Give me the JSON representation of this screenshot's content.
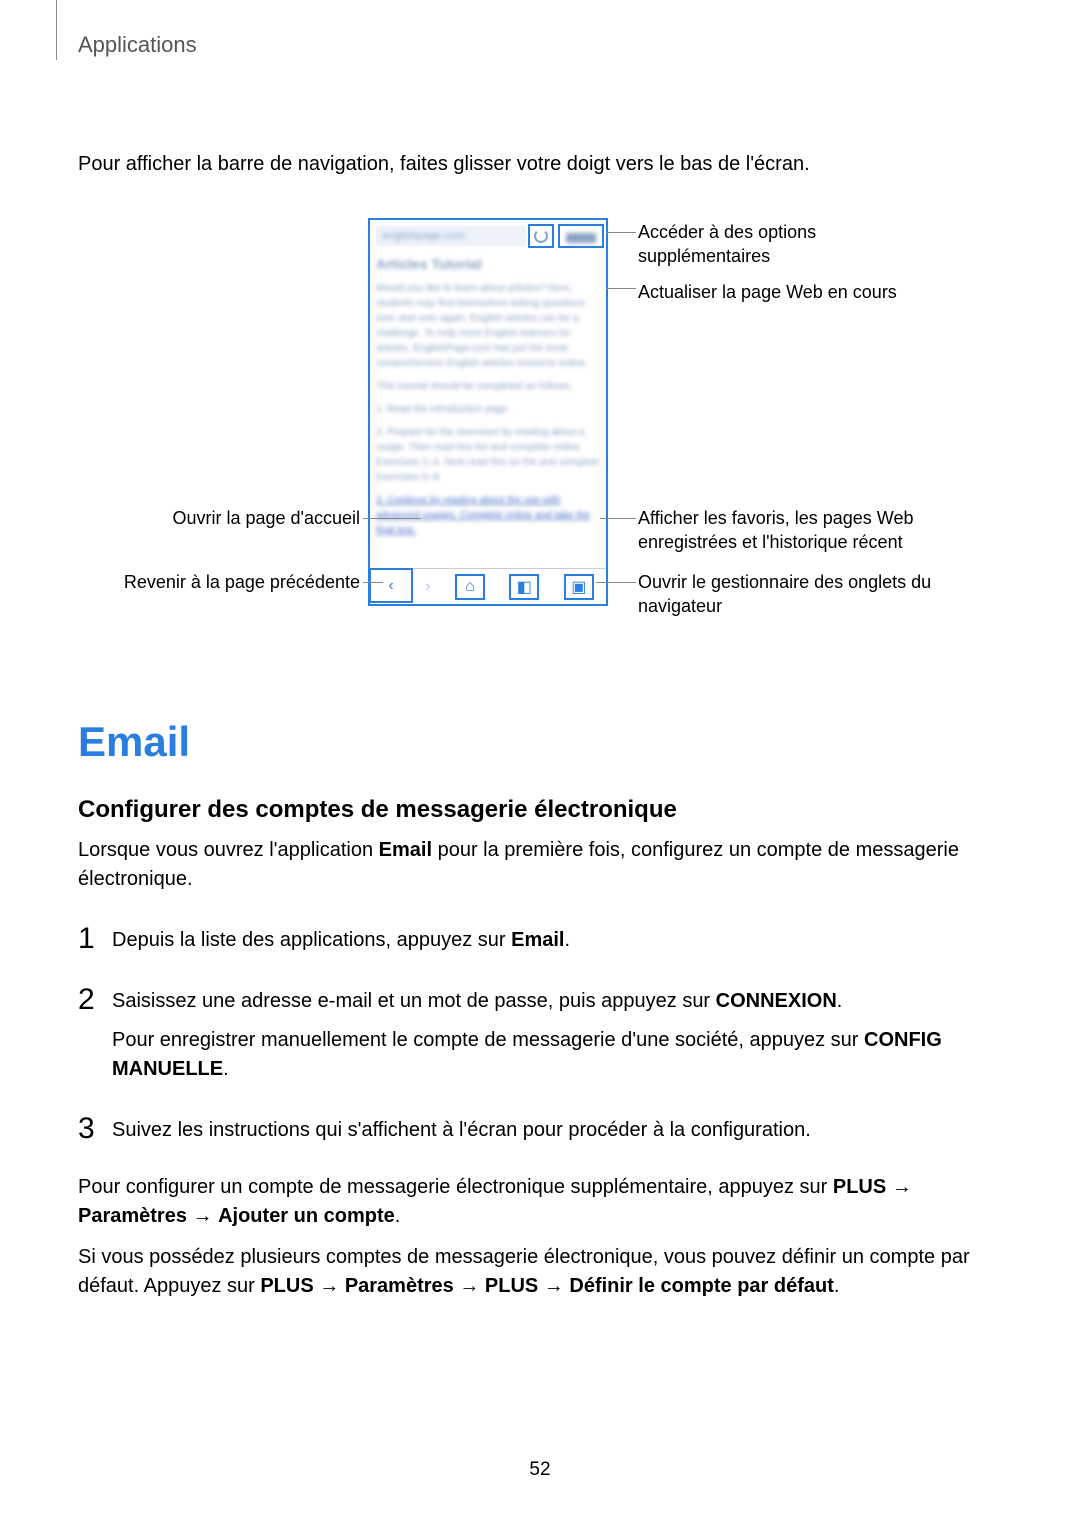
{
  "header": {
    "section": "Applications"
  },
  "intro": "Pour afficher la barre de navigation, faites glisser votre doigt vers le bas de l'écran.",
  "callouts": {
    "right1": "Accéder à des options supplémentaires",
    "right2": "Actualiser la page Web en cours",
    "right3": "Afficher les favoris, les pages Web enregistrées et l'historique récent",
    "right4": "Ouvrir le gestionnaire des onglets du navigateur",
    "left1": "Ouvrir la page d'accueil",
    "left2": "Revenir à la page précédente"
  },
  "email": {
    "heading": "Email",
    "subheading": "Configurer des comptes de messagerie électronique",
    "intro_a": "Lorsque vous ouvrez l'application ",
    "intro_b": "Email",
    "intro_c": " pour la première fois, configurez un compte de messagerie électronique.",
    "step1_a": "Depuis la liste des applications, appuyez sur ",
    "step1_b": "Email",
    "step1_c": ".",
    "step2_a": "Saisissez une adresse e-mail et un mot de passe, puis appuyez sur ",
    "step2_b": "CONNEXION",
    "step2_c": ".",
    "step2_d": "Pour enregistrer manuellement le compte de messagerie d'une société, appuyez sur ",
    "step2_e": "CONFIG MANUELLE",
    "step2_f": ".",
    "step3": "Suivez les instructions qui s'affichent à l'écran pour procéder à la configuration.",
    "p1_a": "Pour configurer un compte de messagerie électronique supplémentaire, appuyez sur ",
    "p1_b": "PLUS",
    "p1_c": " → ",
    "p1_d": "Paramètres",
    "p1_e": " → ",
    "p1_f": "Ajouter un compte",
    "p1_g": ".",
    "p2_a": "Si vous possédez plusieurs comptes de messagerie électronique, vous pouvez définir un compte par défaut. Appuyez sur ",
    "p2_b": "PLUS",
    "p2_c": " → ",
    "p2_d": "Paramètres",
    "p2_e": " → ",
    "p2_f": "PLUS",
    "p2_g": " → ",
    "p2_h": "Définir le compte par défaut",
    "p2_i": "."
  },
  "page_number": "52",
  "blur": {
    "url": "englishpage.com",
    "title": "Articles Tutorial",
    "para1": "Would you like to learn about articles? Here, students may find themselves asking questions over and over again. English articles can be a challenge. To help more English learners for articles, EnglishPage.com has put the most comprehensive English articles resource online.",
    "para2": "This tutorial should be completed as follows:",
    "item1": "1. Read the introduction page.",
    "item2": "2. Prepare for the exercises by reading about a usage. Then read this list and complete online Exercises 1–4. Next read this on the and complete Exercises 5–9.",
    "item3": "3. Continue by reading about the use with advanced usages. Complete online and take the final test."
  }
}
